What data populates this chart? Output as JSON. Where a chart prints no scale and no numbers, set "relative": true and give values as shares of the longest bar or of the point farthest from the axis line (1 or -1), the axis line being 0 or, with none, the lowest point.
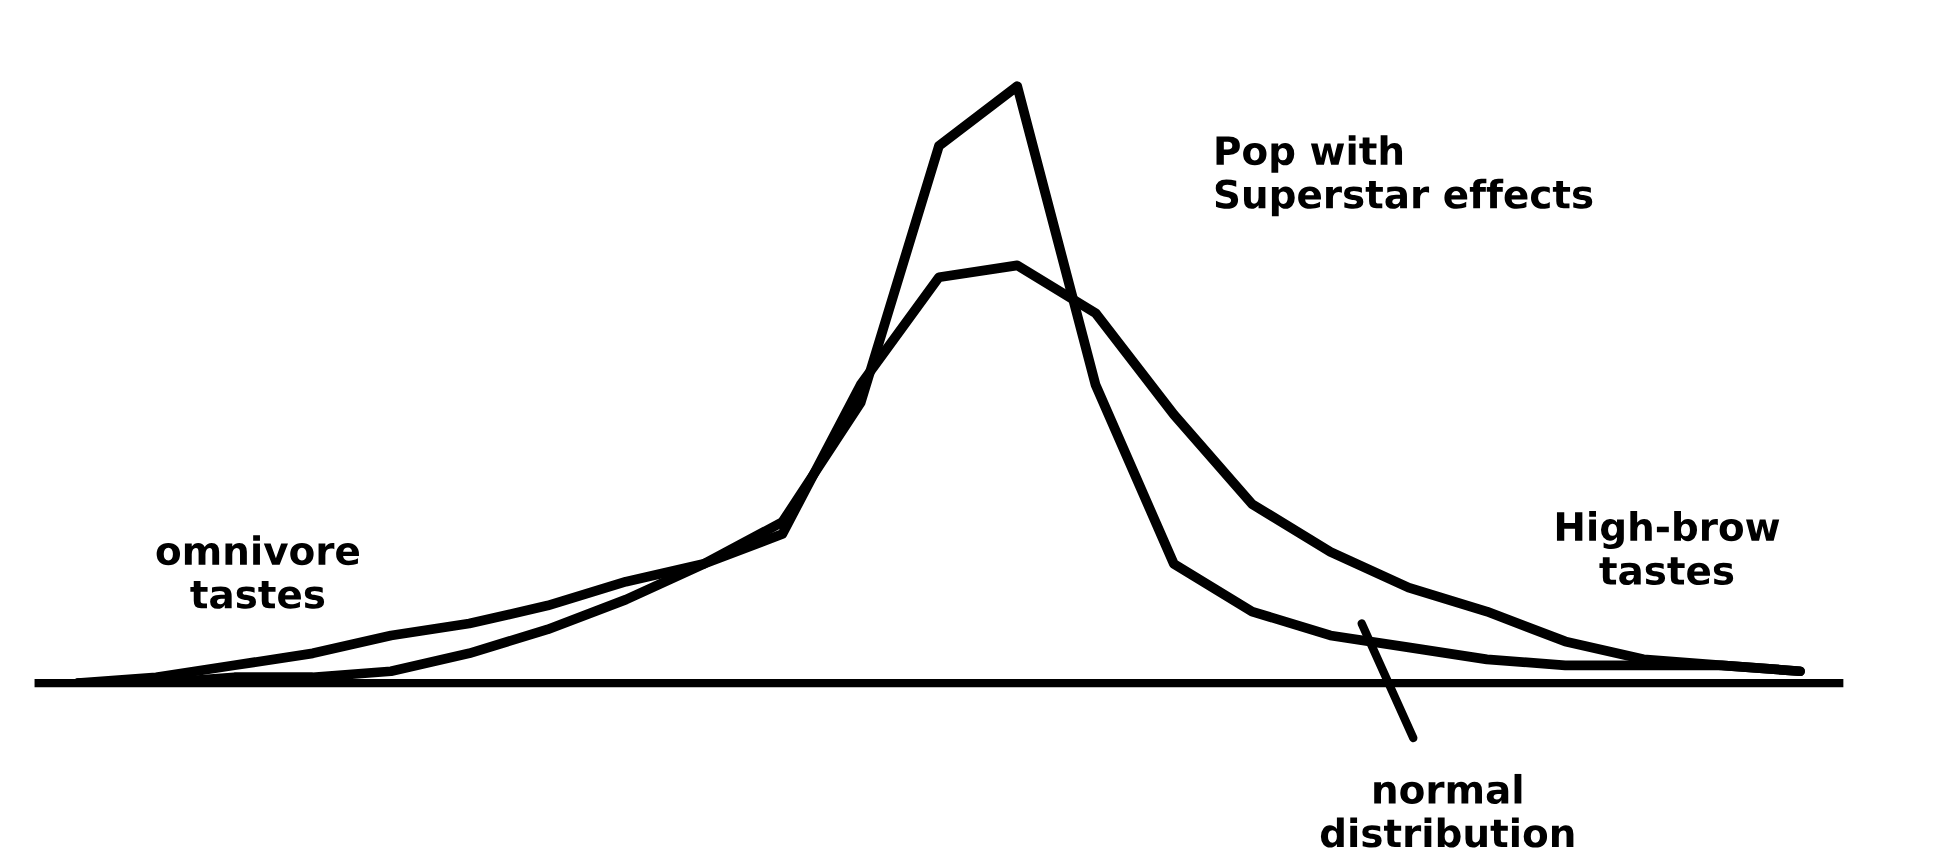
{
  "chart_data": {
    "type": "line",
    "relative": true,
    "categories": [
      null,
      null,
      null,
      null,
      null,
      null,
      null,
      null,
      null,
      null,
      null,
      null,
      null,
      null,
      null,
      null,
      null,
      null,
      null,
      null,
      null,
      null,
      null
    ],
    "series": [
      {
        "color": "#000000",
        "values": [
          0,
          0,
          0.01,
          0.01,
          0.02,
          0.05,
          0.09,
          0.14,
          0.2,
          0.27,
          0.47,
          0.9,
          1.0,
          0.5,
          0.2,
          0.12,
          0.08,
          0.06,
          0.04,
          0.03,
          0.03,
          0.03,
          0.02
        ]
      },
      {
        "color": "#000000",
        "values": [
          0,
          0.01,
          0.03,
          0.05,
          0.08,
          0.1,
          0.13,
          0.17,
          0.2,
          0.25,
          0.5,
          0.68,
          0.7,
          0.62,
          0.45,
          0.3,
          0.22,
          0.16,
          0.12,
          0.07,
          0.04,
          0.03,
          0.02
        ]
      }
    ],
    "annotations": [
      "Pop with\nSuperstar effects",
      "omnivore\ntastes",
      "High-brow\ntastes",
      "normal\ndistribution"
    ],
    "grid": false,
    "legend": false,
    "marker": "none",
    "line_style": "solid"
  }
}
